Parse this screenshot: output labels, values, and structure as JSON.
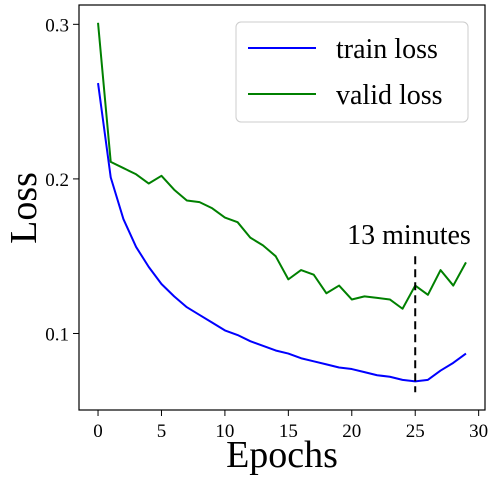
{
  "chart_data": {
    "type": "line",
    "title": "",
    "xlabel": "Epochs",
    "ylabel": "Loss",
    "xlim": [
      -1.5,
      30.5
    ],
    "ylim": [
      0.0505,
      0.3125
    ],
    "xticks": [
      0,
      5,
      10,
      15,
      20,
      25,
      30
    ],
    "yticks": [
      0.1,
      0.2,
      0.3
    ],
    "xtick_labels": [
      "0",
      "5",
      "10",
      "15",
      "20",
      "25",
      "30"
    ],
    "ytick_labels": [
      "0.1",
      "0.2",
      "0.3"
    ],
    "grid": false,
    "legend_position": "top-right",
    "x": [
      0,
      1,
      2,
      3,
      4,
      5,
      6,
      7,
      8,
      9,
      10,
      11,
      12,
      13,
      14,
      15,
      16,
      17,
      18,
      19,
      20,
      21,
      22,
      23,
      24,
      25,
      26,
      27,
      28,
      29
    ],
    "series": [
      {
        "name": "train loss",
        "color": "#0000ff",
        "values": [
          0.262,
          0.201,
          0.174,
          0.156,
          0.143,
          0.132,
          0.124,
          0.117,
          0.112,
          0.107,
          0.102,
          0.099,
          0.095,
          0.092,
          0.089,
          0.087,
          0.084,
          0.082,
          0.08,
          0.078,
          0.077,
          0.075,
          0.073,
          0.072,
          0.07,
          0.069,
          0.07,
          0.076,
          0.081,
          0.087
        ]
      },
      {
        "name": "valid loss",
        "color": "#008000",
        "values": [
          0.301,
          0.211,
          0.207,
          0.203,
          0.197,
          0.202,
          0.193,
          0.186,
          0.185,
          0.181,
          0.175,
          0.172,
          0.162,
          0.157,
          0.15,
          0.135,
          0.141,
          0.138,
          0.126,
          0.131,
          0.122,
          0.124,
          0.123,
          0.122,
          0.116,
          0.131,
          0.125,
          0.141,
          0.131,
          0.146
        ]
      }
    ],
    "annotation": {
      "text": "13 minutes",
      "x": 25,
      "y_range": [
        0.062,
        0.15
      ],
      "style": "dashed",
      "color": "#000000"
    }
  }
}
